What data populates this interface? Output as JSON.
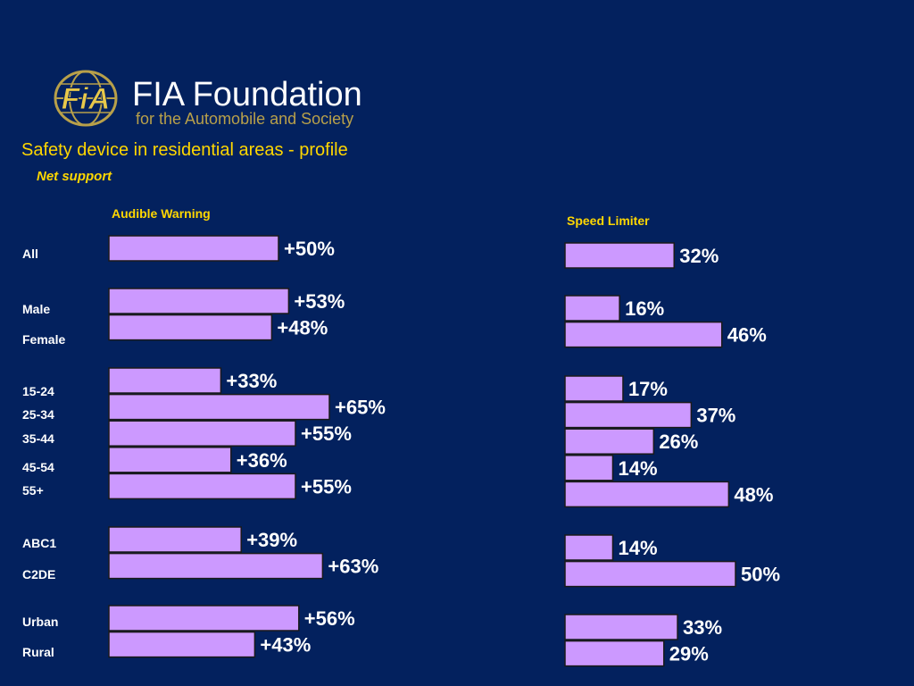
{
  "logo": {
    "mark_text": "FiA",
    "name": "FIA Foundation",
    "tagline": "for the Automobile and Society"
  },
  "title": "Safety device in residential areas - profile",
  "subtitle": "Net support",
  "colors": {
    "background": "#03215e",
    "bar_fill": "#cc99ff",
    "bar_border": "#1a1a1a",
    "title": "#ffd700",
    "text": "#ffffff"
  },
  "chart_data": [
    {
      "type": "bar",
      "orientation": "horizontal",
      "title": "Audible Warning",
      "categories": [
        "All",
        "Male",
        "Female",
        "15-24",
        "25-34",
        "35-44",
        "45-54",
        "55+",
        "ABC1",
        "C2DE",
        "Urban",
        "Rural"
      ],
      "values": [
        50,
        53,
        48,
        33,
        65,
        55,
        36,
        55,
        39,
        63,
        56,
        43
      ],
      "value_labels": [
        "+50%",
        "+53%",
        "+48%",
        "+33%",
        "+65%",
        "+55%",
        "+36%",
        "+55%",
        "+39%",
        "+63%",
        "+56%",
        "+43%"
      ],
      "unit": "%",
      "groups": [
        [
          "All"
        ],
        [
          "Male",
          "Female"
        ],
        [
          "15-24",
          "25-34",
          "35-44",
          "45-54",
          "55+"
        ],
        [
          "ABC1",
          "C2DE"
        ],
        [
          "Urban",
          "Rural"
        ]
      ],
      "grid": false,
      "legend": "none"
    },
    {
      "type": "bar",
      "orientation": "horizontal",
      "title": "Speed Limiter",
      "categories": [
        "All",
        "Male",
        "Female",
        "15-24",
        "25-34",
        "35-44",
        "45-54",
        "55+",
        "ABC1",
        "C2DE",
        "Urban",
        "Rural"
      ],
      "values": [
        32,
        16,
        46,
        17,
        37,
        26,
        14,
        48,
        14,
        50,
        33,
        29
      ],
      "value_labels": [
        "32%",
        "16%",
        "46%",
        "17%",
        "37%",
        "26%",
        "14%",
        "48%",
        "14%",
        "50%",
        "33%",
        "29%"
      ],
      "unit": "%",
      "groups": [
        [
          "All"
        ],
        [
          "Male",
          "Female"
        ],
        [
          "15-24",
          "25-34",
          "35-44",
          "45-54",
          "55+"
        ],
        [
          "ABC1",
          "C2DE"
        ],
        [
          "Urban",
          "Rural"
        ]
      ],
      "grid": false,
      "legend": "none"
    }
  ]
}
